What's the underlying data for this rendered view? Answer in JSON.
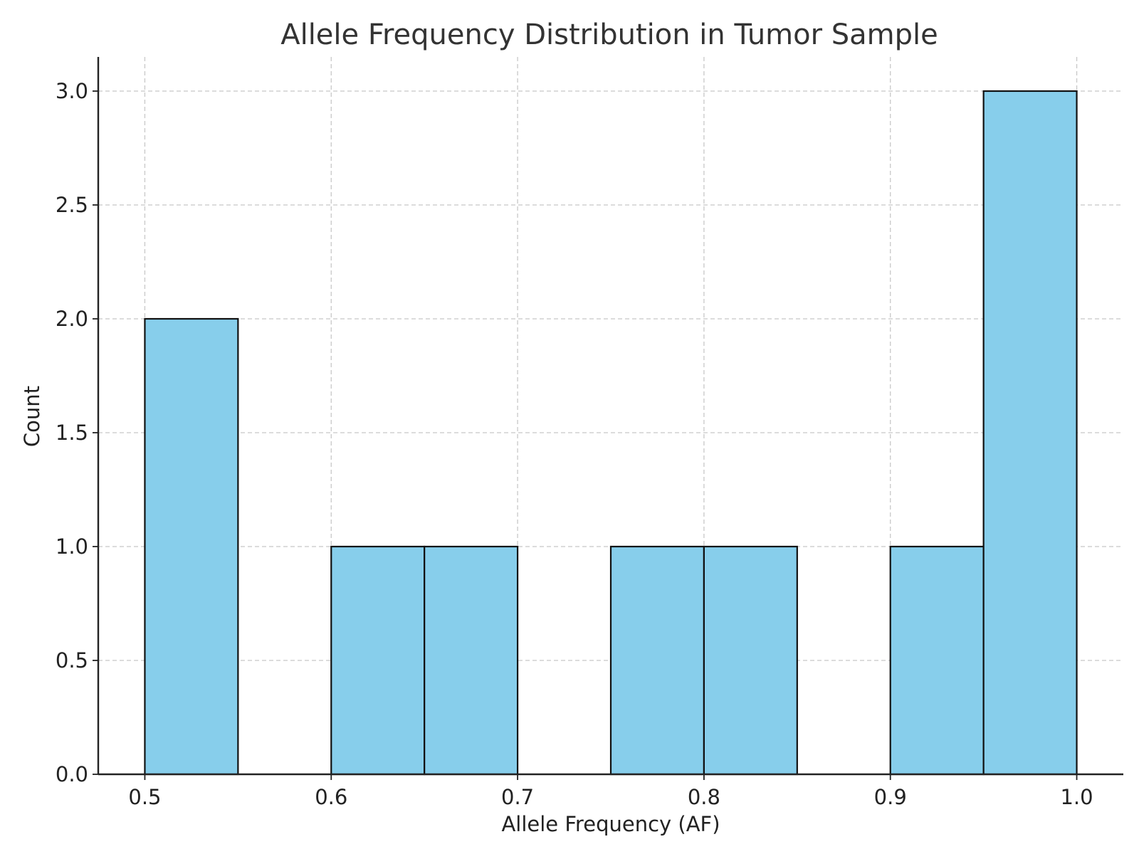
{
  "chart_data": {
    "type": "bar",
    "title": "Allele Frequency Distribution in Tumor Sample",
    "xlabel": "Allele Frequency (AF)",
    "ylabel": "Count",
    "xlim": [
      0.475,
      1.025
    ],
    "ylim": [
      0,
      3.15
    ],
    "xticks": [
      0.5,
      0.6,
      0.7,
      0.8,
      0.9,
      1.0
    ],
    "xtick_labels": [
      "0.5",
      "0.6",
      "0.7",
      "0.8",
      "0.9",
      "1.0"
    ],
    "yticks": [
      0,
      0.5,
      1,
      1.5,
      2,
      2.5,
      3
    ],
    "ytick_labels": [
      "0.0",
      "0.5",
      "1.0",
      "1.5",
      "2.0",
      "2.5",
      "3.0"
    ],
    "grid": true,
    "bar_color": "#87CEEB",
    "edge_color": "#111111",
    "bins": [
      {
        "start": 0.5,
        "end": 0.55,
        "count": 2
      },
      {
        "start": 0.55,
        "end": 0.6,
        "count": 0
      },
      {
        "start": 0.6,
        "end": 0.65,
        "count": 1
      },
      {
        "start": 0.65,
        "end": 0.7,
        "count": 1
      },
      {
        "start": 0.7,
        "end": 0.75,
        "count": 0
      },
      {
        "start": 0.75,
        "end": 0.8,
        "count": 1
      },
      {
        "start": 0.8,
        "end": 0.85,
        "count": 1
      },
      {
        "start": 0.85,
        "end": 0.9,
        "count": 0
      },
      {
        "start": 0.9,
        "end": 0.95,
        "count": 1
      },
      {
        "start": 0.95,
        "end": 1.0,
        "count": 3
      }
    ]
  }
}
